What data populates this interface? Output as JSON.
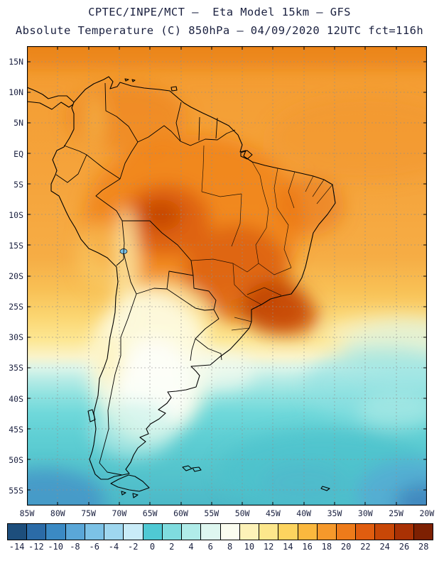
{
  "header": {
    "title_line1": "CPTEC/INPE/MCT –  Eta Model 15km – GFS",
    "title_line2": "Absolute Temperature (C) 850hPa – 04/09/2020 12UTC fct=116h"
  },
  "map": {
    "lat_labels": [
      "15N",
      "10N",
      "5N",
      "EQ",
      "5S",
      "10S",
      "15S",
      "20S",
      "25S",
      "30S",
      "35S",
      "40S",
      "45S",
      "50S",
      "55S"
    ],
    "lon_labels": [
      "85W",
      "80W",
      "75W",
      "70W",
      "65W",
      "60W",
      "55W",
      "50W",
      "45W",
      "40W",
      "35W",
      "30W",
      "25W",
      "20W"
    ]
  },
  "colorbar": {
    "values": [
      "-14",
      "-12",
      "-10",
      "-8",
      "-6",
      "-4",
      "-2",
      "0",
      "2",
      "4",
      "6",
      "8",
      "10",
      "12",
      "14",
      "16",
      "18",
      "20",
      "22",
      "24",
      "26",
      "28"
    ],
    "colors": [
      "#1d4e7c",
      "#2b6ba7",
      "#3b8ac4",
      "#5aa7d8",
      "#7cc2e6",
      "#9fd7ef",
      "#c9ecf8",
      "#4fc9d4",
      "#7fdcdf",
      "#b0ece9",
      "#def7f0",
      "#fbfdf0",
      "#fdf2b8",
      "#fde78c",
      "#fdd45f",
      "#fbb83e",
      "#f6992b",
      "#ee7b1a",
      "#e05d0f",
      "#c84707",
      "#a93104",
      "#7d2002"
    ]
  },
  "chart_data": {
    "type": "heatmap",
    "title": "CPTEC/INPE/MCT – Eta Model 15km – GFS",
    "subtitle": "Absolute Temperature (C) 850hPa – 04/09/2020 12UTC fct=116h",
    "variable": "Absolute Temperature",
    "units": "C",
    "level": "850hPa",
    "model": "Eta Model 15km",
    "boundary_model": "GFS",
    "valid": "04/09/2020 12UTC",
    "forecast": "fct=116h",
    "x_ticks": [
      "85W",
      "80W",
      "75W",
      "70W",
      "65W",
      "60W",
      "55W",
      "50W",
      "45W",
      "40W",
      "35W",
      "30W",
      "25W",
      "20W"
    ],
    "y_ticks": [
      "15N",
      "10N",
      "5N",
      "EQ",
      "5S",
      "10S",
      "15S",
      "20S",
      "25S",
      "30S",
      "35S",
      "40S",
      "45S",
      "50S",
      "55S"
    ],
    "color_scale_values_c": [
      -14,
      -12,
      -10,
      -8,
      -6,
      -4,
      -2,
      0,
      2,
      4,
      6,
      8,
      10,
      12,
      14,
      16,
      18,
      20,
      22,
      24,
      26,
      28
    ],
    "color_scale_colors": [
      "#1d4e7c",
      "#2b6ba7",
      "#3b8ac4",
      "#5aa7d8",
      "#7cc2e6",
      "#9fd7ef",
      "#c9ecf8",
      "#4fc9d4",
      "#7fdcdf",
      "#b0ece9",
      "#def7f0",
      "#fbfdf0",
      "#fdf2b8",
      "#fde78c",
      "#fdd45f",
      "#fbb83e",
      "#f6992b",
      "#ee7b1a",
      "#e05d0f",
      "#c84707",
      "#a93104",
      "#7d2002"
    ],
    "field_readings": [
      {
        "region": "Tropical Atlantic / Caribbean (north of EQ)",
        "approx_value_c": "16 to 20"
      },
      {
        "region": "Amazon basin interior",
        "approx_value_c": "20 to 24"
      },
      {
        "region": "Central-west Brazil warm core (10S–15S, 58W–63W)",
        "approx_value_c": "24 to 28"
      },
      {
        "region": "Minas Gerais / Sao Paulo and SE Brazil coast (18S–26S)",
        "approx_value_c": "24 to 28"
      },
      {
        "region": "Northeast Brazil",
        "approx_value_c": "20 to 24"
      },
      {
        "region": "Andes / altiplano strip (10S–28S along 69W)",
        "approx_value_c": "10 to 14"
      },
      {
        "region": "Paraguay / northern Argentina",
        "approx_value_c": "10 to 14"
      },
      {
        "region": "Central Argentina cold tongue (30S–40S)",
        "approx_value_c": "6 to 10"
      },
      {
        "region": "Uruguay / Rio de la Plata coastal waters",
        "approx_value_c": "6 to 10"
      },
      {
        "region": "Patagonia (42S–50S)",
        "approx_value_c": "0 to 6"
      },
      {
        "region": "South Atlantic 35S–45S",
        "approx_value_c": "2 to 6"
      },
      {
        "region": "Southern Ocean near 55S",
        "approx_value_c": "-2 to -8"
      },
      {
        "region": "Far SW and SE deep-blue patches (55S corners)",
        "approx_value_c": "-8 to -14"
      }
    ]
  }
}
